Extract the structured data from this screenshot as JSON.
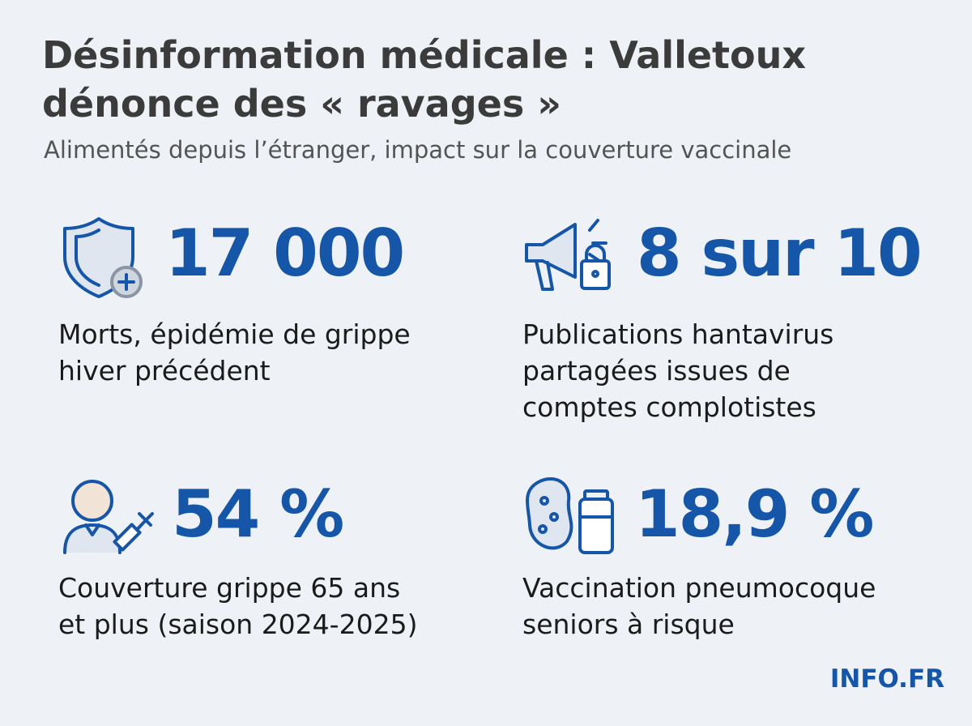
{
  "header": {
    "title_lines": [
      "Désinformation médicale : Valletoux",
      "dénonce des « ravages »"
    ],
    "subtitle": "Alimentés depuis l’étranger, impact sur la couverture vaccinale"
  },
  "stats": [
    {
      "figure": "17 000",
      "label_lines": [
        "Morts, épidémie de grippe",
        "hiver précédent"
      ]
    },
    {
      "figure": "8 sur 10",
      "label_lines": [
        "Publications hantavirus",
        "partagées issues de",
        "comptes complotistes"
      ]
    },
    {
      "figure": "54 %",
      "label_lines": [
        "Couverture grippe 65 ans",
        "et plus (saison 2024-2025)"
      ]
    },
    {
      "figure": "18,9 %",
      "label_lines": [
        "Vaccination pneumocoque",
        "seniors à risque"
      ]
    }
  ],
  "brand": "INFO.FR"
}
